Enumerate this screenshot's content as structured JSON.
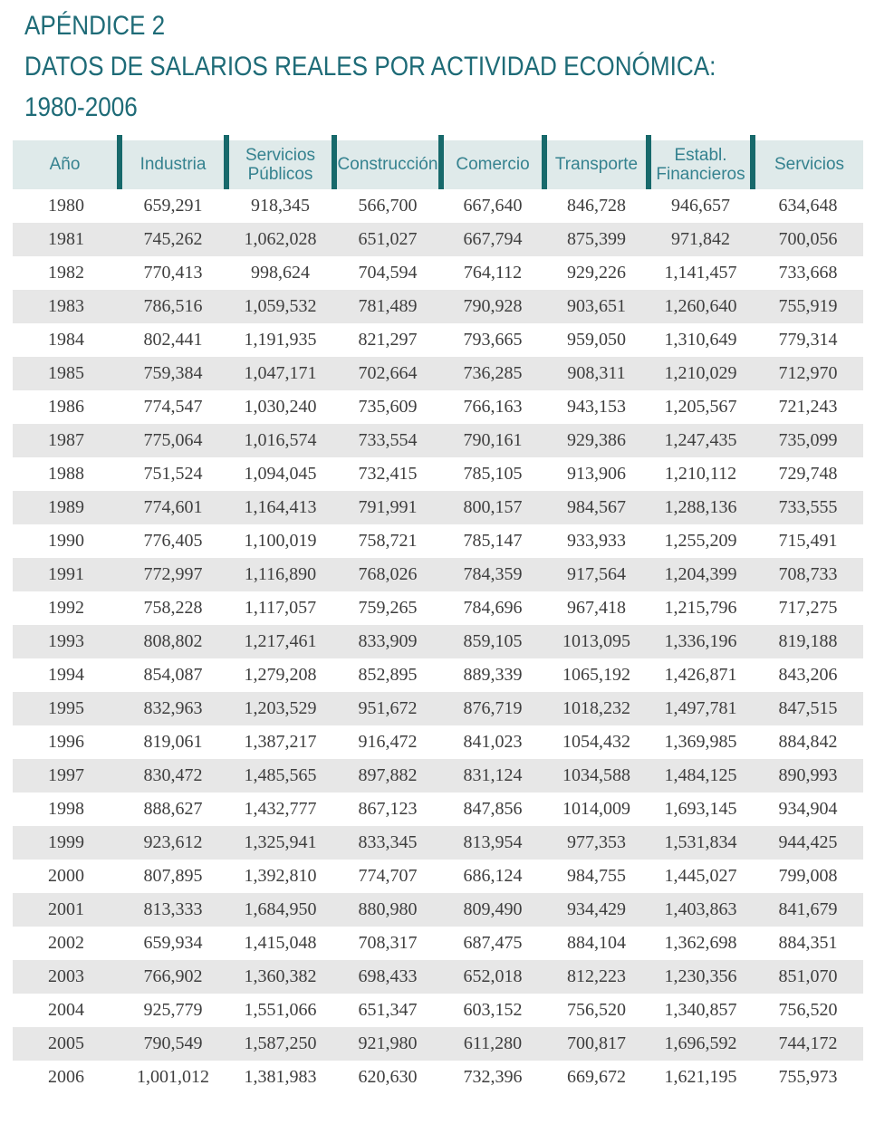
{
  "page": {
    "title_lines": [
      "APÉNDICE 2",
      "DATOS DE SALARIOS REALES POR ACTIVIDAD ECONÓMICA:",
      "1980-2006"
    ]
  },
  "table": {
    "columns": [
      "Año",
      "Industria",
      "Servicios Públicos",
      "Construcción",
      "Comercio",
      "Transporte",
      "Establ. Financieros",
      "Servicios"
    ],
    "rows": [
      [
        "1980",
        "659,291",
        "918,345",
        "566,700",
        "667,640",
        "846,728",
        "946,657",
        "634,648"
      ],
      [
        "1981",
        "745,262",
        "1,062,028",
        "651,027",
        "667,794",
        "875,399",
        "971,842",
        "700,056"
      ],
      [
        "1982",
        "770,413",
        "998,624",
        "704,594",
        "764,112",
        "929,226",
        "1,141,457",
        "733,668"
      ],
      [
        "1983",
        "786,516",
        "1,059,532",
        "781,489",
        "790,928",
        "903,651",
        "1,260,640",
        "755,919"
      ],
      [
        "1984",
        "802,441",
        "1,191,935",
        "821,297",
        "793,665",
        "959,050",
        "1,310,649",
        "779,314"
      ],
      [
        "1985",
        "759,384",
        "1,047,171",
        "702,664",
        "736,285",
        "908,311",
        "1,210,029",
        "712,970"
      ],
      [
        "1986",
        "774,547",
        "1,030,240",
        "735,609",
        "766,163",
        "943,153",
        "1,205,567",
        "721,243"
      ],
      [
        "1987",
        "775,064",
        "1,016,574",
        "733,554",
        "790,161",
        "929,386",
        "1,247,435",
        "735,099"
      ],
      [
        "1988",
        "751,524",
        "1,094,045",
        "732,415",
        "785,105",
        "913,906",
        "1,210,112",
        "729,748"
      ],
      [
        "1989",
        "774,601",
        "1,164,413",
        "791,991",
        "800,157",
        "984,567",
        "1,288,136",
        "733,555"
      ],
      [
        "1990",
        "776,405",
        "1,100,019",
        "758,721",
        "785,147",
        "933,933",
        "1,255,209",
        "715,491"
      ],
      [
        "1991",
        "772,997",
        "1,116,890",
        "768,026",
        "784,359",
        "917,564",
        "1,204,399",
        "708,733"
      ],
      [
        "1992",
        "758,228",
        "1,117,057",
        "759,265",
        "784,696",
        "967,418",
        "1,215,796",
        "717,275"
      ],
      [
        "1993",
        "808,802",
        "1,217,461",
        "833,909",
        "859,105",
        "1013,095",
        "1,336,196",
        "819,188"
      ],
      [
        "1994",
        "854,087",
        "1,279,208",
        "852,895",
        "889,339",
        "1065,192",
        "1,426,871",
        "843,206"
      ],
      [
        "1995",
        "832,963",
        "1,203,529",
        "951,672",
        "876,719",
        "1018,232",
        "1,497,781",
        "847,515"
      ],
      [
        "1996",
        "819,061",
        "1,387,217",
        "916,472",
        "841,023",
        "1054,432",
        "1,369,985",
        "884,842"
      ],
      [
        "1997",
        "830,472",
        "1,485,565",
        "897,882",
        "831,124",
        "1034,588",
        "1,484,125",
        "890,993"
      ],
      [
        "1998",
        "888,627",
        "1,432,777",
        "867,123",
        "847,856",
        "1014,009",
        "1,693,145",
        "934,904"
      ],
      [
        "1999",
        "923,612",
        "1,325,941",
        "833,345",
        "813,954",
        "977,353",
        "1,531,834",
        "944,425"
      ],
      [
        "2000",
        "807,895",
        "1,392,810",
        "774,707",
        "686,124",
        "984,755",
        "1,445,027",
        "799,008"
      ],
      [
        "2001",
        "813,333",
        "1,684,950",
        "880,980",
        "809,490",
        "934,429",
        "1,403,863",
        "841,679"
      ],
      [
        "2002",
        "659,934",
        "1,415,048",
        "708,317",
        "687,475",
        "884,104",
        "1,362,698",
        "884,351"
      ],
      [
        "2003",
        "766,902",
        "1,360,382",
        "698,433",
        "652,018",
        "812,223",
        "1,230,356",
        "851,070"
      ],
      [
        "2004",
        "925,779",
        "1,551,066",
        "651,347",
        "603,152",
        "756,520",
        "1,340,857",
        "756,520"
      ],
      [
        "2005",
        "790,549",
        "1,587,250",
        "921,980",
        "611,280",
        "700,817",
        "1,696,592",
        "744,172"
      ],
      [
        "2006",
        "1,001,012",
        "1,381,983",
        "620,630",
        "732,396",
        "669,672",
        "1,621,195",
        "755,973"
      ]
    ]
  },
  "colors": {
    "accent_teal": "#1e6b77",
    "header_bg": "#dfeaea",
    "header_text": "#35828f",
    "separator": "#17696b",
    "stripe": "#e7e7e7",
    "cell_text": "#3e3e3e",
    "page_bg": "#ffffff"
  }
}
